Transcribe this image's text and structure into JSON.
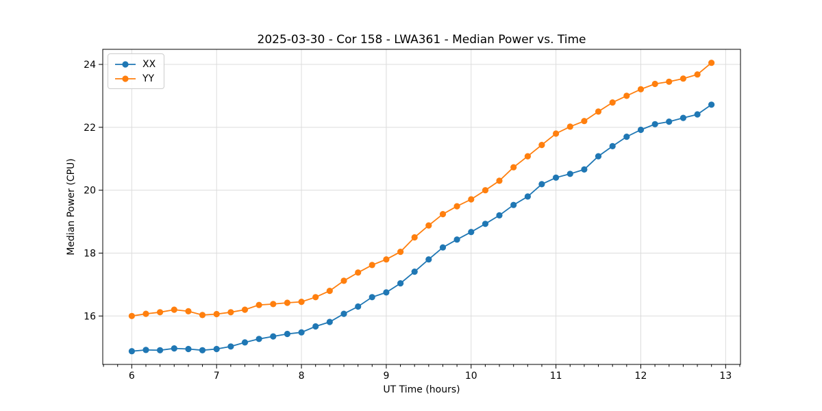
{
  "chart_data": {
    "type": "line",
    "title": "2025-03-30 - Cor 158 - LWA361 - Median Power vs. Time",
    "xlabel": "UT Time (hours)",
    "ylabel": "Median Power (CPU)",
    "xlim": [
      5.658,
      13.175
    ],
    "ylim": [
      14.46,
      24.48
    ],
    "xticks": [
      6,
      7,
      8,
      9,
      10,
      11,
      12,
      13
    ],
    "yticks": [
      16,
      18,
      20,
      22,
      24
    ],
    "minor_xtick_step": 0.1667,
    "grid": true,
    "grid_color": "#dcdcdc",
    "axis_color": "#000000",
    "legend_position": "upper-left",
    "marker": "circle",
    "x": [
      6.0,
      6.167,
      6.333,
      6.5,
      6.667,
      6.833,
      7.0,
      7.167,
      7.333,
      7.5,
      7.667,
      7.833,
      8.0,
      8.167,
      8.333,
      8.5,
      8.667,
      8.833,
      9.0,
      9.167,
      9.333,
      9.5,
      9.667,
      9.833,
      10.0,
      10.167,
      10.333,
      10.5,
      10.667,
      10.833,
      11.0,
      11.167,
      11.333,
      11.5,
      11.667,
      11.833,
      12.0,
      12.167,
      12.333,
      12.5,
      12.667,
      12.833
    ],
    "series": [
      {
        "name": "XX",
        "color": "#1f77b4",
        "values": [
          14.88,
          14.92,
          14.91,
          14.97,
          14.95,
          14.91,
          14.95,
          15.03,
          15.16,
          15.27,
          15.35,
          15.43,
          15.48,
          15.67,
          15.81,
          16.07,
          16.3,
          16.6,
          16.75,
          17.04,
          17.41,
          17.8,
          18.18,
          18.43,
          18.67,
          18.93,
          19.2,
          19.53,
          19.8,
          20.19,
          20.4,
          20.52,
          20.66,
          21.08,
          21.4,
          21.7,
          21.92,
          22.1,
          22.18,
          22.3,
          22.41,
          22.72
        ]
      },
      {
        "name": "YY",
        "color": "#ff7f0e",
        "values": [
          16.0,
          16.07,
          16.12,
          16.2,
          16.15,
          16.03,
          16.06,
          16.12,
          16.2,
          16.35,
          16.38,
          16.42,
          16.45,
          16.6,
          16.8,
          17.12,
          17.38,
          17.62,
          17.8,
          18.04,
          18.5,
          18.88,
          19.24,
          19.49,
          19.71,
          20.0,
          20.3,
          20.73,
          21.08,
          21.44,
          21.8,
          22.02,
          22.2,
          22.5,
          22.79,
          23.0,
          23.21,
          23.38,
          23.45,
          23.55,
          23.68,
          24.05
        ]
      }
    ]
  }
}
